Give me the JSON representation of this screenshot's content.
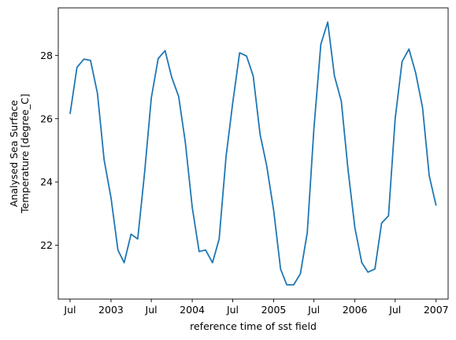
{
  "chart_data": {
    "type": "line",
    "title": "",
    "xlabel": "reference time of sst field",
    "ylabel_lines": [
      "Analysed Sea Surface",
      "Temperature [degree_C]"
    ],
    "x_ticks": [
      {
        "date": "2002-07-01",
        "label": "Jul"
      },
      {
        "date": "2003-01-01",
        "label": "2003"
      },
      {
        "date": "2003-07-01",
        "label": "Jul"
      },
      {
        "date": "2004-01-01",
        "label": "2004"
      },
      {
        "date": "2004-07-01",
        "label": "Jul"
      },
      {
        "date": "2005-01-01",
        "label": "2005"
      },
      {
        "date": "2005-07-01",
        "label": "Jul"
      },
      {
        "date": "2006-01-01",
        "label": "2006"
      },
      {
        "date": "2006-07-01",
        "label": "Jul"
      },
      {
        "date": "2007-01-01",
        "label": "2007"
      }
    ],
    "y_ticks": [
      22,
      24,
      26,
      28
    ],
    "xlim": [
      "2002-05-09",
      "2007-02-24"
    ],
    "ylim": [
      20.3,
      29.5
    ],
    "grid": false,
    "color": "#1f77b4",
    "series": [
      {
        "x": [
          "2002-07-01",
          "2002-08-01",
          "2002-09-01",
          "2002-10-01",
          "2002-11-01",
          "2002-12-01",
          "2003-01-01",
          "2003-02-01",
          "2003-03-01",
          "2003-04-01",
          "2003-05-01",
          "2003-06-01",
          "2003-07-01",
          "2003-08-01",
          "2003-09-01",
          "2003-10-01",
          "2003-11-01",
          "2003-12-01",
          "2004-01-01",
          "2004-02-01",
          "2004-03-01",
          "2004-04-01",
          "2004-05-01",
          "2004-06-01",
          "2004-07-01",
          "2004-08-01",
          "2004-09-01",
          "2004-10-01",
          "2004-11-01",
          "2004-12-01",
          "2005-01-01",
          "2005-02-01",
          "2005-03-01",
          "2005-04-01",
          "2005-05-01",
          "2005-06-01",
          "2005-07-01",
          "2005-08-01",
          "2005-09-01",
          "2005-10-01",
          "2005-11-01",
          "2005-12-01",
          "2006-01-01",
          "2006-02-01",
          "2006-03-01",
          "2006-04-01",
          "2006-05-01",
          "2006-06-01",
          "2006-07-01",
          "2006-08-01",
          "2006-09-01",
          "2006-10-01",
          "2006-11-01",
          "2006-12-01",
          "2007-01-01"
        ],
        "y": [
          26.15,
          27.62,
          27.88,
          27.84,
          26.8,
          24.7,
          23.5,
          21.85,
          21.45,
          22.35,
          22.2,
          24.3,
          26.65,
          27.9,
          28.15,
          27.3,
          26.7,
          25.25,
          23.2,
          21.8,
          21.85,
          21.45,
          22.2,
          24.8,
          26.5,
          28.08,
          27.98,
          27.35,
          25.5,
          24.5,
          23.1,
          21.25,
          20.75,
          20.75,
          21.1,
          22.4,
          25.7,
          28.35,
          29.05,
          27.35,
          26.55,
          24.4,
          22.55,
          21.45,
          21.15,
          21.25,
          22.7,
          22.93,
          26.0,
          27.8,
          28.2,
          27.45,
          26.35,
          24.2,
          23.25
        ]
      }
    ]
  }
}
